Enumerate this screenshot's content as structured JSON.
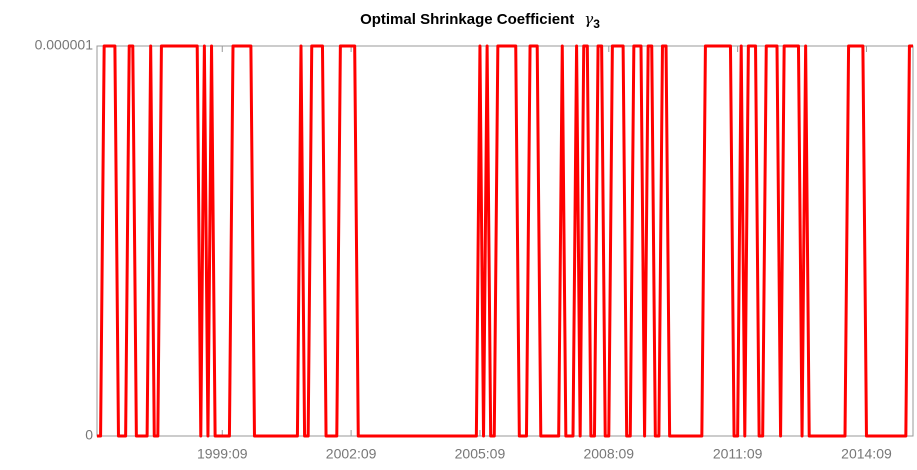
{
  "chart_data": {
    "type": "line",
    "title": "Optimal Shrinkage Coefficient",
    "title_symbol": "γ",
    "title_subscript": "3",
    "categories": [
      null,
      null,
      null,
      null,
      null,
      null,
      null,
      null,
      null,
      null,
      null,
      null,
      null,
      null,
      null,
      null,
      null,
      null,
      null,
      null,
      null,
      null,
      null,
      null,
      null,
      null,
      null,
      null,
      null,
      null,
      null,
      null,
      null,
      null,
      null,
      "1999:09",
      null,
      null,
      null,
      null,
      null,
      null,
      null,
      null,
      null,
      null,
      null,
      null,
      null,
      null,
      null,
      null,
      null,
      null,
      null,
      null,
      null,
      null,
      null,
      null,
      null,
      null,
      null,
      null,
      null,
      null,
      null,
      null,
      null,
      null,
      null,
      "2002:09",
      null,
      null,
      null,
      null,
      null,
      null,
      null,
      null,
      null,
      null,
      null,
      null,
      null,
      null,
      null,
      null,
      null,
      null,
      null,
      null,
      null,
      null,
      null,
      null,
      null,
      null,
      null,
      null,
      null,
      null,
      null,
      null,
      null,
      null,
      null,
      "2005:09",
      null,
      null,
      null,
      null,
      null,
      null,
      null,
      null,
      null,
      null,
      null,
      null,
      null,
      null,
      null,
      null,
      null,
      null,
      null,
      null,
      null,
      null,
      null,
      null,
      null,
      null,
      null,
      null,
      null,
      null,
      null,
      null,
      null,
      null,
      null,
      "2008:09",
      null,
      null,
      null,
      null,
      null,
      null,
      null,
      null,
      null,
      null,
      null,
      null,
      null,
      null,
      null,
      null,
      null,
      null,
      null,
      null,
      null,
      null,
      null,
      null,
      null,
      null,
      null,
      null,
      null,
      null,
      null,
      null,
      null,
      null,
      null,
      "2011:09",
      null,
      null,
      null,
      null,
      null,
      null,
      null,
      null,
      null,
      null,
      null,
      null,
      null,
      null,
      null,
      null,
      null,
      null,
      null,
      null,
      null,
      null,
      null,
      null,
      null,
      null,
      null,
      null,
      null,
      null,
      null,
      null,
      null,
      null,
      null,
      "2014:09",
      null,
      null,
      null,
      null,
      null,
      null,
      null,
      null,
      null,
      null,
      null,
      null,
      null
    ],
    "series": [
      {
        "name": "gamma3",
        "color": "#ff0000",
        "values": [
          0,
          0,
          1e-06,
          1e-06,
          1e-06,
          1e-06,
          0,
          0,
          0,
          1e-06,
          1e-06,
          0,
          0,
          0,
          0,
          1e-06,
          0,
          0,
          1e-06,
          1e-06,
          1e-06,
          1e-06,
          1e-06,
          1e-06,
          1e-06,
          1e-06,
          1e-06,
          1e-06,
          1e-06,
          0,
          1e-06,
          0,
          1e-06,
          0,
          0,
          0,
          0,
          0,
          1e-06,
          1e-06,
          1e-06,
          1e-06,
          1e-06,
          1e-06,
          0,
          0,
          0,
          0,
          0,
          0,
          0,
          0,
          0,
          0,
          0,
          0,
          0,
          1e-06,
          0,
          0,
          1e-06,
          1e-06,
          1e-06,
          1e-06,
          0,
          0,
          0,
          0,
          1e-06,
          1e-06,
          1e-06,
          1e-06,
          1e-06,
          0,
          0,
          0,
          0,
          0,
          0,
          0,
          0,
          0,
          0,
          0,
          0,
          0,
          0,
          0,
          0,
          0,
          0,
          0,
          0,
          0,
          0,
          0,
          0,
          0,
          0,
          0,
          0,
          0,
          0,
          0,
          0,
          0,
          0,
          1e-06,
          0,
          1e-06,
          0,
          0,
          1e-06,
          1e-06,
          1e-06,
          1e-06,
          1e-06,
          1e-06,
          0,
          0,
          0,
          1e-06,
          1e-06,
          1e-06,
          0,
          0,
          0,
          0,
          0,
          0,
          1e-06,
          0,
          0,
          0,
          1e-06,
          0,
          1e-06,
          1e-06,
          0,
          0,
          1e-06,
          1e-06,
          0,
          0,
          1e-06,
          1e-06,
          1e-06,
          1e-06,
          0,
          0,
          1e-06,
          1e-06,
          1e-06,
          0,
          1e-06,
          1e-06,
          0,
          0,
          1e-06,
          1e-06,
          0,
          0,
          0,
          0,
          0,
          0,
          0,
          0,
          0,
          0,
          1e-06,
          1e-06,
          1e-06,
          1e-06,
          1e-06,
          1e-06,
          1e-06,
          1e-06,
          0,
          0,
          1e-06,
          0,
          1e-06,
          1e-06,
          1e-06,
          0,
          0,
          1e-06,
          1e-06,
          1e-06,
          1e-06,
          0,
          1e-06,
          1e-06,
          1e-06,
          1e-06,
          1e-06,
          0,
          1e-06,
          0,
          0,
          0,
          0,
          0,
          0,
          0,
          0,
          0,
          0,
          0,
          1e-06,
          1e-06,
          1e-06,
          1e-06,
          1e-06,
          0,
          0,
          0,
          0,
          0,
          0,
          0,
          0,
          0,
          0,
          0,
          0,
          1e-06,
          1e-06
        ]
      }
    ],
    "ylim": [
      0,
      1e-06
    ],
    "yticks": [
      0,
      1e-06
    ]
  }
}
